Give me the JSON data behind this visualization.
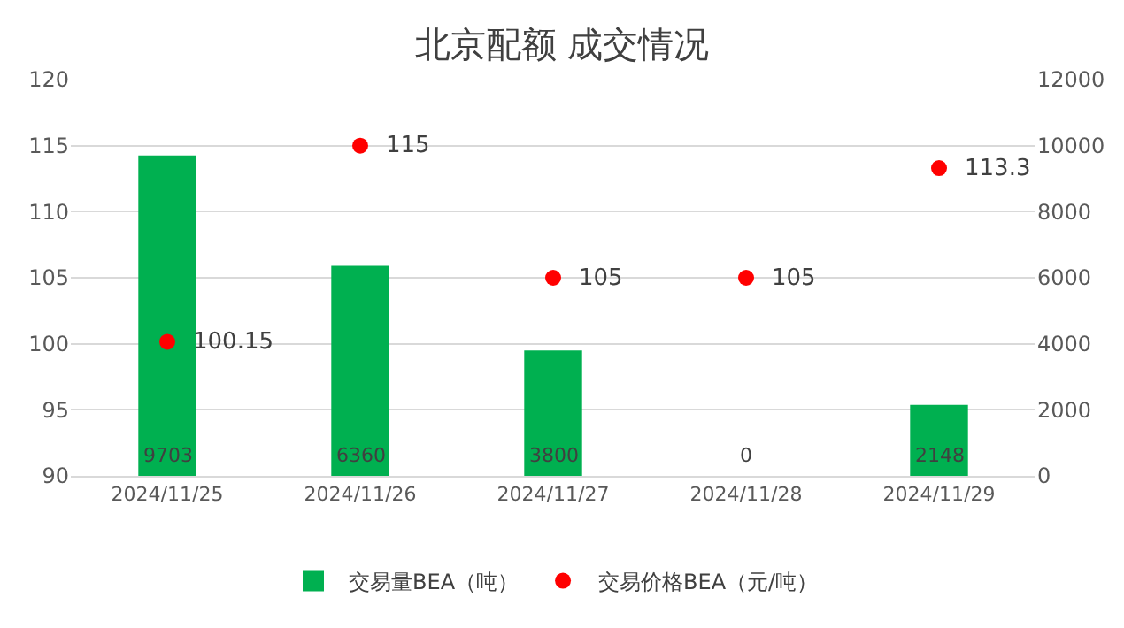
{
  "chart_data": {
    "type": "bar",
    "title": "北京配额 成交情况",
    "categories": [
      "2024/11/25",
      "2024/11/26",
      "2024/11/27",
      "2024/11/28",
      "2024/11/29"
    ],
    "series": [
      {
        "name": "交易量BEA（吨）",
        "axis": "y2",
        "color": "#00b050",
        "values": [
          9703,
          6360,
          3800,
          0,
          2148
        ]
      },
      {
        "name": "交易价格BEA（元/吨）",
        "type": "scatter",
        "axis": "y",
        "color": "#ff0000",
        "values": [
          100.15,
          115,
          105,
          105,
          113.3
        ]
      }
    ],
    "ylim": [
      90,
      120
    ],
    "yticks": [
      90,
      95,
      100,
      105,
      110,
      115,
      120
    ],
    "y2lim": [
      0,
      12000
    ],
    "y2ticks": [
      0,
      2000,
      4000,
      6000,
      8000,
      10000,
      12000
    ],
    "grid": "y",
    "legend": "bottom",
    "marker": "circle",
    "data_labels": true
  }
}
